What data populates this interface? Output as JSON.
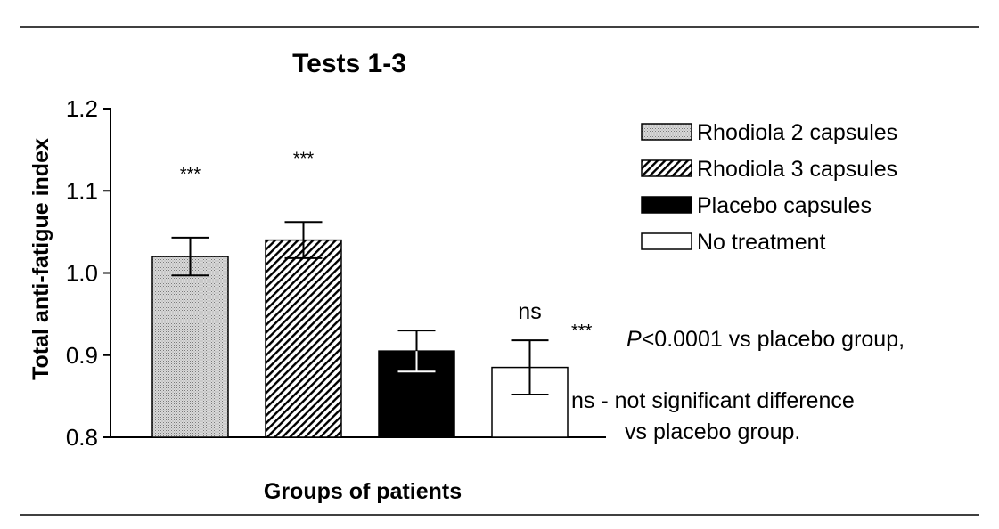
{
  "chart_data": {
    "type": "bar",
    "title": "Tests 1-3",
    "xlabel": "Groups of patients",
    "ylabel": "Total anti-fatigue index",
    "ylim": [
      0.8,
      1.2
    ],
    "yticks": [
      "0.8",
      "0.9",
      "1.0",
      "1.1",
      "1.2"
    ],
    "grid": false,
    "legend_position": "top-right",
    "series": [
      {
        "name": "Rhodiola 2 capsules",
        "fill": "dotted-gray",
        "value": 1.02,
        "error": 0.023,
        "annotation": "***"
      },
      {
        "name": "Rhodiola 3 capsules",
        "fill": "diagonal-hatch",
        "value": 1.04,
        "error": 0.022,
        "annotation": "***"
      },
      {
        "name": "Placebo capsules",
        "fill": "solid-black",
        "value": 0.905,
        "error": 0.025,
        "annotation": ""
      },
      {
        "name": "No treatment",
        "fill": "white",
        "value": 0.885,
        "error": 0.033,
        "annotation": "ns"
      }
    ],
    "footnotes": {
      "star_symbol": "***",
      "star_p": "P",
      "star_rest": "<0.0001 vs placebo group,",
      "ns_line1": "ns - not significant difference",
      "ns_line2": "vs placebo group."
    }
  }
}
